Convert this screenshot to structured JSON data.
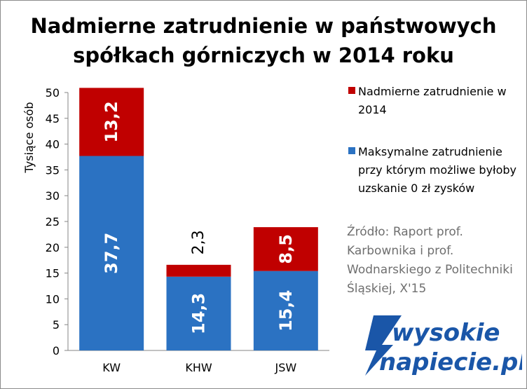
{
  "title_line1": "Nadmierne zatrudnienie w państwowych",
  "title_line2": "spółkach górniczych w 2014 roku",
  "legend": {
    "excess": "Nadmierne zatrudnienie w 2014",
    "max": "Maksymalne zatrudnienie przy którym możliwe byłoby uzskanie 0 zł zysków"
  },
  "source": "Źródło: Raport prof. Karbownika i prof. Wodnarskiego z Politechniki Śląskiej, X'15",
  "logo": {
    "line1": "wysokie",
    "line2": "napiecie.pl"
  },
  "colors": {
    "excess": "#c00000",
    "max": "#2b72c2",
    "logo": "#1a56a8"
  },
  "chart_data": {
    "type": "bar",
    "stacked": true,
    "categories": [
      "KW",
      "KHW",
      "JSW"
    ],
    "series": [
      {
        "name": "Maksymalne zatrudnienie przy którym możliwe byłoby uzskanie 0 zł zysków",
        "values": [
          37.7,
          14.3,
          15.4
        ],
        "labels": [
          "37,7",
          "14,3",
          "15,4"
        ]
      },
      {
        "name": "Nadmierne zatrudnienie w 2014",
        "values": [
          13.2,
          2.3,
          8.5
        ],
        "labels": [
          "13,2",
          "2,3",
          "8,5"
        ]
      }
    ],
    "ylabel": "Tysiące osób",
    "ylim": [
      0,
      50
    ],
    "yticks": [
      "0",
      "5",
      "10",
      "15",
      "20",
      "25",
      "30",
      "35",
      "40",
      "45",
      "50"
    ],
    "grid": false,
    "legend_position": "right"
  }
}
